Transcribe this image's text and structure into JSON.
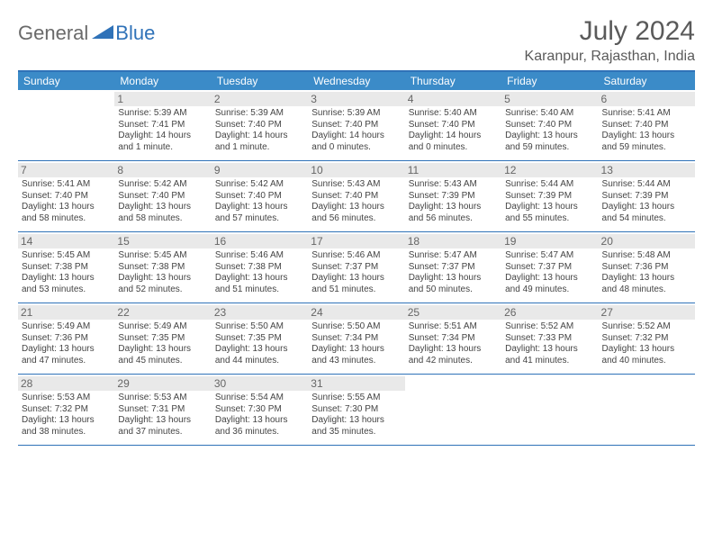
{
  "logo": {
    "text1": "General",
    "text2": "Blue"
  },
  "title": "July 2024",
  "location": "Karanpur, Rajasthan, India",
  "colors": {
    "header_bg": "#3b8bc8",
    "border": "#2f72b8",
    "daynum_bg": "#e9e9e9",
    "text_muted": "#666",
    "body_text": "#444"
  },
  "weekdays": [
    "Sunday",
    "Monday",
    "Tuesday",
    "Wednesday",
    "Thursday",
    "Friday",
    "Saturday"
  ],
  "weeks": [
    [
      null,
      {
        "n": "1",
        "sr": "5:39 AM",
        "ss": "7:41 PM",
        "dl": "14 hours and 1 minute."
      },
      {
        "n": "2",
        "sr": "5:39 AM",
        "ss": "7:40 PM",
        "dl": "14 hours and 1 minute."
      },
      {
        "n": "3",
        "sr": "5:39 AM",
        "ss": "7:40 PM",
        "dl": "14 hours and 0 minutes."
      },
      {
        "n": "4",
        "sr": "5:40 AM",
        "ss": "7:40 PM",
        "dl": "14 hours and 0 minutes."
      },
      {
        "n": "5",
        "sr": "5:40 AM",
        "ss": "7:40 PM",
        "dl": "13 hours and 59 minutes."
      },
      {
        "n": "6",
        "sr": "5:41 AM",
        "ss": "7:40 PM",
        "dl": "13 hours and 59 minutes."
      }
    ],
    [
      {
        "n": "7",
        "sr": "5:41 AM",
        "ss": "7:40 PM",
        "dl": "13 hours and 58 minutes."
      },
      {
        "n": "8",
        "sr": "5:42 AM",
        "ss": "7:40 PM",
        "dl": "13 hours and 58 minutes."
      },
      {
        "n": "9",
        "sr": "5:42 AM",
        "ss": "7:40 PM",
        "dl": "13 hours and 57 minutes."
      },
      {
        "n": "10",
        "sr": "5:43 AM",
        "ss": "7:40 PM",
        "dl": "13 hours and 56 minutes."
      },
      {
        "n": "11",
        "sr": "5:43 AM",
        "ss": "7:39 PM",
        "dl": "13 hours and 56 minutes."
      },
      {
        "n": "12",
        "sr": "5:44 AM",
        "ss": "7:39 PM",
        "dl": "13 hours and 55 minutes."
      },
      {
        "n": "13",
        "sr": "5:44 AM",
        "ss": "7:39 PM",
        "dl": "13 hours and 54 minutes."
      }
    ],
    [
      {
        "n": "14",
        "sr": "5:45 AM",
        "ss": "7:38 PM",
        "dl": "13 hours and 53 minutes."
      },
      {
        "n": "15",
        "sr": "5:45 AM",
        "ss": "7:38 PM",
        "dl": "13 hours and 52 minutes."
      },
      {
        "n": "16",
        "sr": "5:46 AM",
        "ss": "7:38 PM",
        "dl": "13 hours and 51 minutes."
      },
      {
        "n": "17",
        "sr": "5:46 AM",
        "ss": "7:37 PM",
        "dl": "13 hours and 51 minutes."
      },
      {
        "n": "18",
        "sr": "5:47 AM",
        "ss": "7:37 PM",
        "dl": "13 hours and 50 minutes."
      },
      {
        "n": "19",
        "sr": "5:47 AM",
        "ss": "7:37 PM",
        "dl": "13 hours and 49 minutes."
      },
      {
        "n": "20",
        "sr": "5:48 AM",
        "ss": "7:36 PM",
        "dl": "13 hours and 48 minutes."
      }
    ],
    [
      {
        "n": "21",
        "sr": "5:49 AM",
        "ss": "7:36 PM",
        "dl": "13 hours and 47 minutes."
      },
      {
        "n": "22",
        "sr": "5:49 AM",
        "ss": "7:35 PM",
        "dl": "13 hours and 45 minutes."
      },
      {
        "n": "23",
        "sr": "5:50 AM",
        "ss": "7:35 PM",
        "dl": "13 hours and 44 minutes."
      },
      {
        "n": "24",
        "sr": "5:50 AM",
        "ss": "7:34 PM",
        "dl": "13 hours and 43 minutes."
      },
      {
        "n": "25",
        "sr": "5:51 AM",
        "ss": "7:34 PM",
        "dl": "13 hours and 42 minutes."
      },
      {
        "n": "26",
        "sr": "5:52 AM",
        "ss": "7:33 PM",
        "dl": "13 hours and 41 minutes."
      },
      {
        "n": "27",
        "sr": "5:52 AM",
        "ss": "7:32 PM",
        "dl": "13 hours and 40 minutes."
      }
    ],
    [
      {
        "n": "28",
        "sr": "5:53 AM",
        "ss": "7:32 PM",
        "dl": "13 hours and 38 minutes."
      },
      {
        "n": "29",
        "sr": "5:53 AM",
        "ss": "7:31 PM",
        "dl": "13 hours and 37 minutes."
      },
      {
        "n": "30",
        "sr": "5:54 AM",
        "ss": "7:30 PM",
        "dl": "13 hours and 36 minutes."
      },
      {
        "n": "31",
        "sr": "5:55 AM",
        "ss": "7:30 PM",
        "dl": "13 hours and 35 minutes."
      },
      null,
      null,
      null
    ]
  ],
  "labels": {
    "sunrise": "Sunrise:",
    "sunset": "Sunset:",
    "daylight": "Daylight:"
  }
}
